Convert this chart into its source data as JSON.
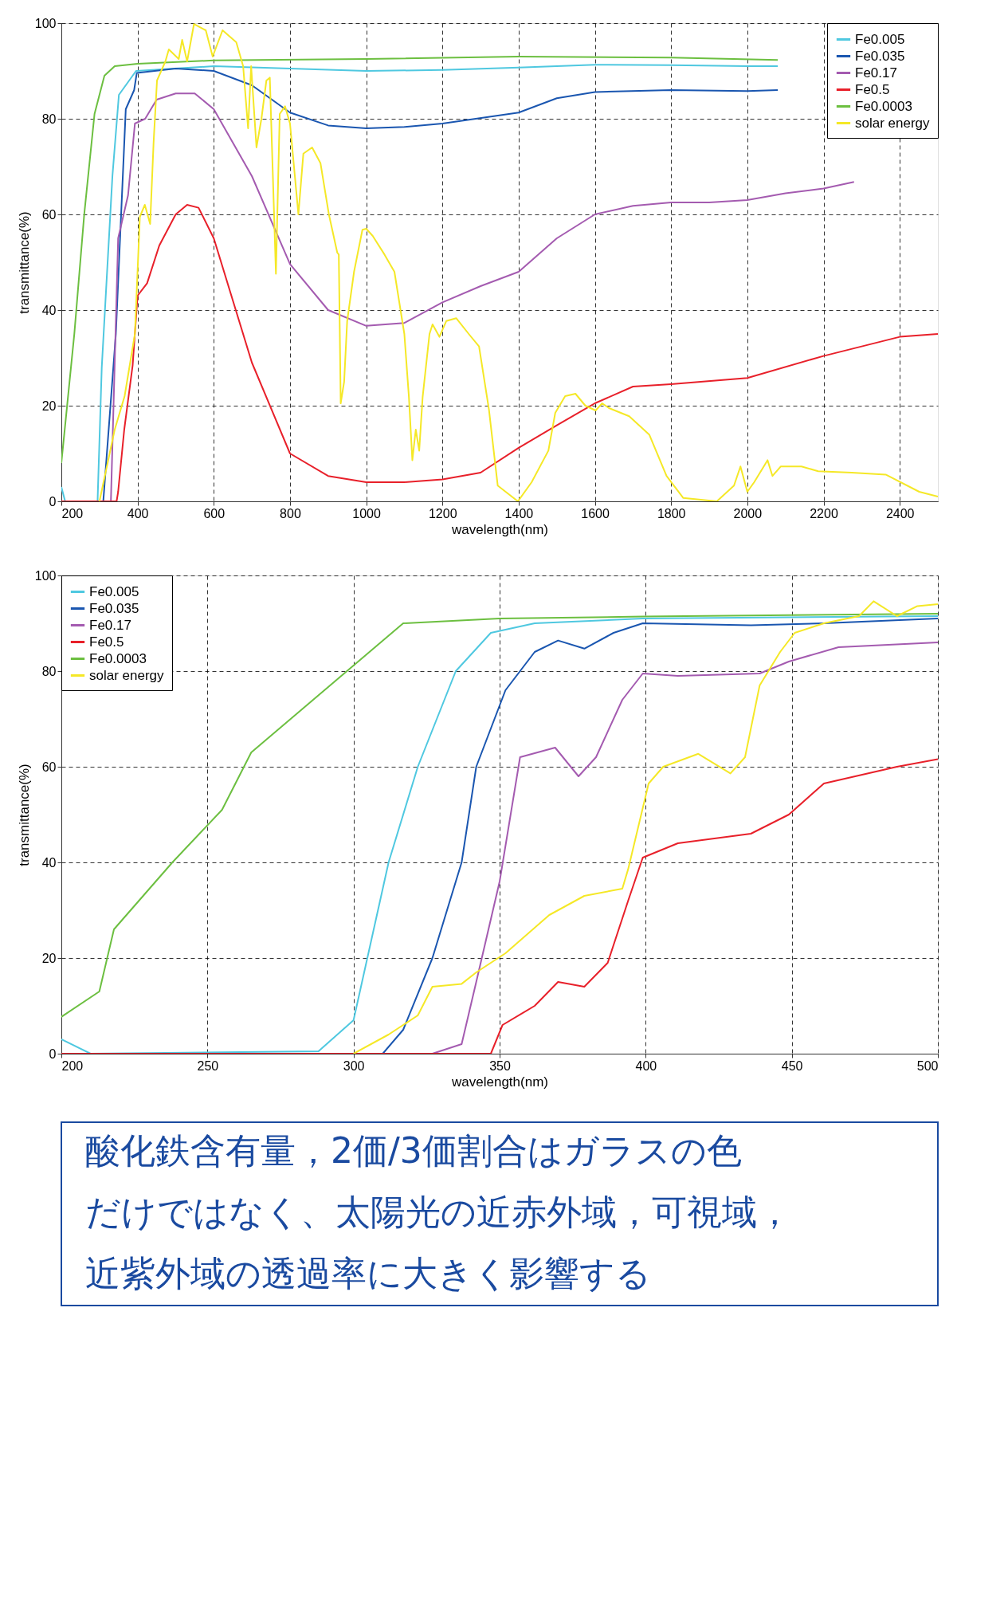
{
  "chart_data": [
    {
      "type": "line",
      "xlabel": "wavelength(nm)",
      "ylabel": "transmittance(%)",
      "xlim": [
        200,
        2500
      ],
      "xticks": [
        200,
        400,
        600,
        800,
        1000,
        1200,
        1400,
        1600,
        1800,
        2000,
        2200,
        2400
      ],
      "ylim": [
        0,
        100
      ],
      "yticks": [
        0,
        20,
        40,
        60,
        80,
        100
      ],
      "grid": true,
      "legend": "top right",
      "marker": "none",
      "line_style": "solid",
      "series": [
        {
          "name": "Fe0.005",
          "color": "#4fc8e0",
          "x": [
            200,
            210,
            295,
            306,
            334,
            351,
            396,
            600,
            1000,
            1200,
            1400,
            1600,
            1800,
            2000,
            2080
          ],
          "values": [
            3,
            0,
            0,
            28,
            68,
            85,
            90,
            91,
            90,
            90.2,
            90.7,
            91.3,
            91.2,
            91,
            91
          ]
        },
        {
          "name": "Fe0.035",
          "color": "#1a56b0",
          "x": [
            200,
            310,
            343,
            369,
            391,
            398,
            500,
            600,
            700,
            800,
            900,
            1000,
            1100,
            1200,
            1400,
            1500,
            1600,
            1800,
            2000,
            2080
          ],
          "values": [
            0,
            0,
            35,
            82,
            86,
            89.6,
            90.5,
            90,
            87,
            81.3,
            78.6,
            78,
            78.3,
            79,
            81.3,
            84.3,
            85.6,
            86,
            85.8,
            86
          ]
        },
        {
          "name": "Fe0.17",
          "color": "#a45bb0",
          "x": [
            200,
            330,
            349,
            375,
            393,
            420,
            450,
            500,
            550,
            600,
            700,
            800,
            900,
            1000,
            1100,
            1200,
            1300,
            1400,
            1500,
            1600,
            1700,
            1800,
            1900,
            2000,
            2100,
            2200,
            2280
          ],
          "values": [
            0,
            0,
            55,
            64,
            79,
            80,
            84,
            85.3,
            85.3,
            82,
            68,
            49.6,
            40,
            36.7,
            37.3,
            41.6,
            45,
            48,
            55,
            60,
            61.8,
            62.5,
            62.5,
            63,
            64.4,
            65.4,
            66.8
          ]
        },
        {
          "name": "Fe0.5",
          "color": "#e8202a",
          "x": [
            200,
            345,
            349,
            365,
            387,
            400,
            425,
            457,
            500,
            530,
            560,
            600,
            700,
            800,
            900,
            1000,
            1100,
            1200,
            1300,
            1400,
            1500,
            1600,
            1700,
            1800,
            2000,
            2200,
            2400,
            2500
          ],
          "values": [
            0,
            0,
            2,
            15,
            28.4,
            43,
            45.6,
            53.5,
            60,
            62,
            61.4,
            55,
            29,
            10,
            5.3,
            4,
            4,
            4.6,
            6,
            11.2,
            15.9,
            20.5,
            24,
            24.5,
            25.8,
            30.4,
            34.4,
            35
          ]
        },
        {
          "name": "Fe0.0003",
          "color": "#6cbf40",
          "x": [
            200,
            234,
            260,
            287,
            313,
            340,
            400,
            600,
            1000,
            1400,
            1800,
            2080
          ],
          "values": [
            8,
            35,
            60,
            81,
            89,
            91,
            91.5,
            92.2,
            92.5,
            93,
            92.8,
            92.3
          ]
        },
        {
          "name": "solar energy",
          "color": "#f5e827",
          "x": [
            300,
            340,
            366,
            393,
            406,
            419,
            433,
            442,
            451,
            473,
            482,
            508,
            517,
            530,
            548,
            579,
            597,
            623,
            659,
            677,
            690,
            698,
            712,
            725,
            738,
            747,
            763,
            773,
            787,
            800,
            822,
            835,
            858,
            880,
            902,
            924,
            928,
            933,
            942,
            950,
            968,
            990,
            1000,
            1017,
            1048,
            1074,
            1100,
            1112,
            1121,
            1130,
            1139,
            1148,
            1166,
            1174,
            1192,
            1210,
            1236,
            1269,
            1296,
            1322,
            1345,
            1398,
            1434,
            1478,
            1496,
            1522,
            1549,
            1575,
            1602,
            1619,
            1637,
            1690,
            1743,
            1788,
            1832,
            1920,
            1965,
            1982,
            2000,
            2018,
            2053,
            2066,
            2088,
            2142,
            2186,
            2274,
            2363,
            2451,
            2500
          ],
          "values": [
            0,
            15,
            22,
            35,
            59.5,
            62,
            58,
            75,
            88,
            92,
            94.5,
            92.5,
            96.5,
            92,
            99.8,
            98.5,
            93,
            98.5,
            96,
            91,
            78,
            91,
            74,
            80,
            88,
            88.6,
            47.6,
            81,
            82.6,
            79,
            60,
            72.7,
            74,
            70.7,
            60,
            52,
            51.6,
            20.5,
            25,
            37.7,
            48,
            56.8,
            57,
            55.5,
            51.6,
            48,
            35,
            21.8,
            8.6,
            15,
            10.6,
            21.8,
            35,
            37,
            34.4,
            37.7,
            38.3,
            35,
            32.4,
            19.2,
            3.3,
            0,
            4,
            10.6,
            18.5,
            22,
            22.5,
            20,
            19,
            20.5,
            19.5,
            17.8,
            13.9,
            5.3,
            0.7,
            0,
            3.3,
            7.3,
            2,
            4,
            8.6,
            5.3,
            7.3,
            7.3,
            6.3,
            6,
            5.6,
            2,
            1
          ]
        }
      ]
    },
    {
      "type": "line",
      "xlabel": "wavelength(nm)",
      "ylabel": "transmittance(%)",
      "xlim": [
        200,
        500
      ],
      "xticks": [
        200,
        250,
        300,
        350,
        400,
        450,
        500
      ],
      "ylim": [
        0,
        100
      ],
      "yticks": [
        0,
        20,
        40,
        60,
        80,
        100
      ],
      "grid": true,
      "legend": "top left",
      "marker": "none",
      "line_style": "solid",
      "series": [
        {
          "name": "Fe0.005",
          "color": "#4fc8e0",
          "x": [
            200,
            210,
            288,
            300,
            312,
            322,
            335,
            347,
            362,
            399,
            500
          ],
          "values": [
            3,
            0,
            0.5,
            7,
            40,
            60,
            80,
            88,
            90,
            91,
            91.5
          ]
        },
        {
          "name": "Fe0.035",
          "color": "#1a56b0",
          "x": [
            200,
            310,
            317,
            327,
            337,
            342,
            352,
            362,
            370,
            379,
            389,
            399,
            436,
            461,
            500
          ],
          "values": [
            0,
            0,
            5,
            20,
            40,
            60,
            76,
            84,
            86.4,
            84.7,
            88,
            90,
            89.6,
            90,
            91
          ]
        },
        {
          "name": "Fe0.17",
          "color": "#a45bb0",
          "x": [
            200,
            327,
            337,
            342,
            350,
            357,
            369,
            377,
            383,
            392,
            399,
            411,
            439,
            449,
            466,
            500
          ],
          "values": [
            0,
            0,
            2,
            15,
            36,
            62,
            64,
            58,
            62,
            74,
            79.5,
            79,
            79.5,
            82,
            85,
            86
          ]
        },
        {
          "name": "Fe0.5",
          "color": "#e8202a",
          "x": [
            200,
            347,
            351,
            362,
            370,
            379,
            387,
            394,
            399,
            411,
            436,
            449,
            461,
            486,
            500
          ],
          "values": [
            0,
            0,
            6,
            10,
            15,
            14,
            19,
            32,
            41,
            44,
            46,
            50,
            56.5,
            60,
            61.6
          ]
        },
        {
          "name": "Fe0.0003",
          "color": "#6cbf40",
          "x": [
            200,
            213,
            218,
            238,
            255,
            265,
            317,
            350,
            399,
            500
          ],
          "values": [
            7.7,
            13,
            26,
            40,
            51,
            63,
            90,
            91,
            91.4,
            92
          ]
        },
        {
          "name": "solar energy",
          "color": "#f5e827",
          "x": [
            300,
            312,
            322,
            327,
            337,
            342,
            352,
            367,
            379,
            392,
            394,
            401,
            406,
            418,
            429,
            434,
            439,
            446,
            451,
            461,
            473,
            478,
            486,
            493,
            500
          ],
          "values": [
            0,
            4,
            8,
            14,
            14.6,
            17,
            21,
            29,
            33,
            34.5,
            38.6,
            56.5,
            60,
            62.7,
            58.6,
            62,
            77,
            84,
            88,
            90,
            91.5,
            94.6,
            91.5,
            93.6,
            94
          ]
        }
      ]
    },
    {
      "type": "other",
      "color": "#1a4aa0",
      "annotations": [
        "酸化鉄含有量，2価/3価割合はガラスの色",
        "だけではなく、太陽光の近赤外域，可視域，",
        "近紫外域の透過率に大きく影響する"
      ]
    }
  ]
}
